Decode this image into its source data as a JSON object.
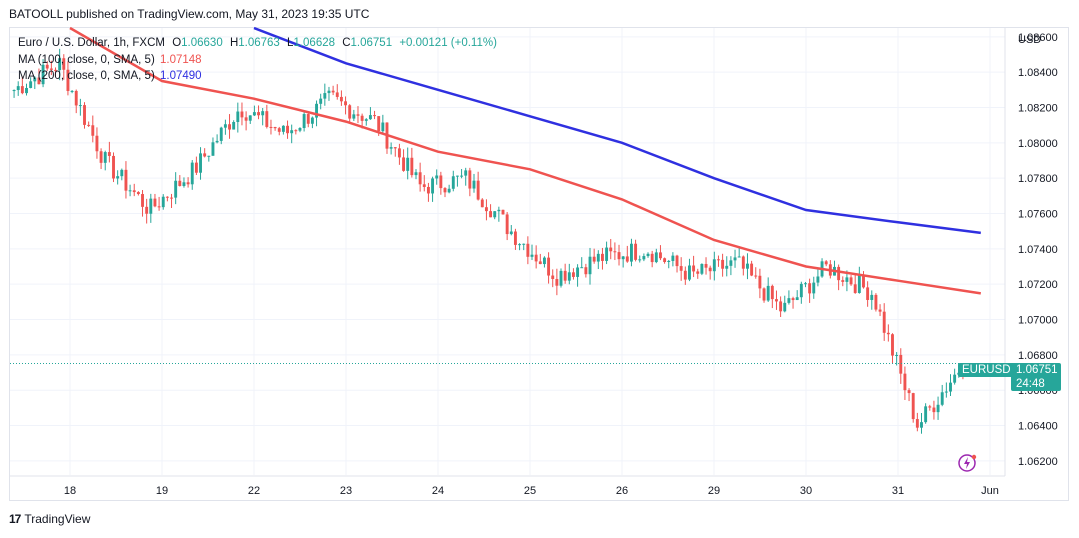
{
  "header": {
    "text": "BATOOLL published on TradingView.com, May 31, 2023 19:35 UTC"
  },
  "legend": {
    "symbol": "Euro / U.S. Dollar, 1h, FXCM",
    "o_label": "O",
    "o": "1.06630",
    "h_label": "H",
    "h": "1.06763",
    "l_label": "L",
    "l": "1.06628",
    "c_label": "C",
    "c": "1.06751",
    "change": "+0.00121 (+0.11%)",
    "ma100_label": "MA (100, close, 0, SMA, 5)",
    "ma100_value": "1.07148",
    "ma200_label": "MA (200, close, 0, SMA, 5)",
    "ma200_value": "1.07490"
  },
  "axis": {
    "currency": "USD"
  },
  "price_badge": {
    "symbol": "EURUSD",
    "price": "1.06751",
    "countdown": "24:48"
  },
  "footer": {
    "brand": "TradingView"
  },
  "colors": {
    "up": "#26a69a",
    "down": "#ef5350",
    "ma100": "#ef5350",
    "ma200": "#2f30e0",
    "grid": "#f0f3fa",
    "text": "#131722"
  },
  "chart_data": {
    "type": "line",
    "title": "Euro / U.S. Dollar, 1h, FXCM",
    "xlabel": "",
    "ylabel": "USD",
    "ylim": [
      1.0612,
      1.0865
    ],
    "y_ticks": [
      "1.08600",
      "1.08400",
      "1.08200",
      "1.08000",
      "1.07800",
      "1.07600",
      "1.07400",
      "1.07200",
      "1.07000",
      "1.06800",
      "1.06600",
      "1.06400",
      "1.06200"
    ],
    "x_tick_labels": [
      "18",
      "19",
      "22",
      "23",
      "24",
      "25",
      "26",
      "29",
      "30",
      "31",
      "Jun"
    ],
    "grid": true,
    "price_series": {
      "name": "EURUSD",
      "x": [
        "18",
        "",
        "19",
        "",
        "22",
        "",
        "23",
        "",
        "24",
        "",
        "25",
        "",
        "26",
        "",
        "29",
        "",
        "30",
        "",
        "31",
        "",
        "",
        "Jun"
      ],
      "close": [
        1.083,
        1.0845,
        1.079,
        1.0762,
        1.0785,
        1.082,
        1.0805,
        1.0825,
        1.0812,
        1.0775,
        1.078,
        1.075,
        1.0725,
        1.0735,
        1.074,
        1.0725,
        1.0732,
        1.0705,
        1.073,
        1.0715,
        1.064,
        1.06751
      ]
    },
    "series": [
      {
        "name": "MA (100, close, 0, SMA, 5)",
        "x": [
          "18",
          "19",
          "22",
          "23",
          "24",
          "25",
          "26",
          "29",
          "30",
          "31",
          "31.9"
        ],
        "values": [
          1.0865,
          1.0835,
          1.0825,
          1.0812,
          1.0795,
          1.0785,
          1.0768,
          1.0745,
          1.073,
          1.0722,
          1.07148
        ]
      },
      {
        "name": "MA (200, close, 0, SMA, 5)",
        "x": [
          "22",
          "23",
          "24",
          "25",
          "26",
          "29",
          "30",
          "31",
          "31.9"
        ],
        "values": [
          1.0865,
          1.0845,
          1.083,
          1.0815,
          1.08,
          1.078,
          1.0762,
          1.0755,
          1.0749
        ]
      }
    ]
  }
}
